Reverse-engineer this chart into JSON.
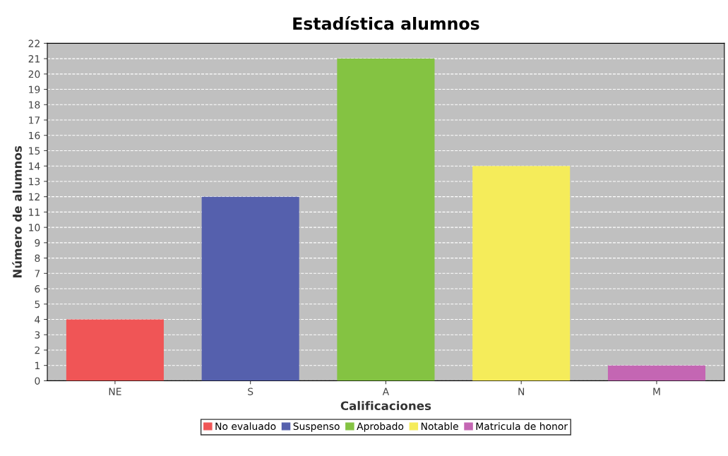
{
  "chart_data": {
    "type": "bar",
    "title": "Estadística alumnos",
    "xlabel": "Calificaciones",
    "ylabel": "Número de alumnos",
    "categories": [
      "NE",
      "S",
      "A",
      "N",
      "M"
    ],
    "series": [
      {
        "name": "No evaluado",
        "color": "#f05556",
        "values": [
          4,
          null,
          null,
          null,
          null
        ]
      },
      {
        "name": "Suspenso",
        "color": "#5560ad",
        "values": [
          null,
          12,
          null,
          null,
          null
        ]
      },
      {
        "name": "Aprobado",
        "color": "#84c342",
        "values": [
          null,
          null,
          21,
          null,
          null
        ]
      },
      {
        "name": "Notable",
        "color": "#f5ec5a",
        "values": [
          null,
          null,
          null,
          14,
          null
        ]
      },
      {
        "name": "Matricula de honor",
        "color": "#c466b3",
        "values": [
          null,
          null,
          null,
          null,
          1
        ]
      }
    ],
    "ylim": [
      0,
      22
    ],
    "yticks": [
      0,
      1,
      2,
      3,
      4,
      5,
      6,
      7,
      8,
      9,
      10,
      11,
      12,
      13,
      14,
      15,
      16,
      17,
      18,
      19,
      20,
      21,
      22
    ],
    "grid": "y",
    "legend": "bottom"
  }
}
